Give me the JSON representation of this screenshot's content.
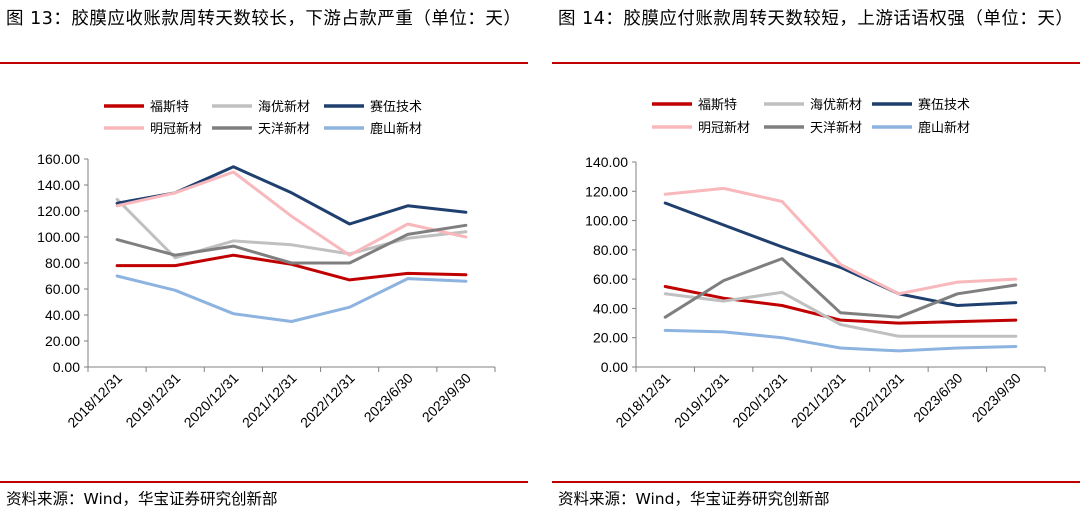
{
  "colors": {
    "rule": "#c00000",
    "series": [
      "#c00000",
      "#c0c0c0",
      "#1f3f6e",
      "#f8b8bc",
      "#7f7f7f",
      "#8db3e0"
    ]
  },
  "chart_data": [
    {
      "type": "line",
      "title": "图 13：胶膜应收账款周转天数较长，下游占款严重（单位：天）",
      "source": "资料来源：Wind，华宝证券研究创新部",
      "legend_position": "top",
      "grid": false,
      "x": [
        "2018/12/31",
        "2019/12/31",
        "2020/12/31",
        "2021/12/31",
        "2022/12/31",
        "2023/6/30",
        "2023/9/30"
      ],
      "ylim": [
        0,
        160
      ],
      "yticks": [
        "0.00",
        "20.00",
        "40.00",
        "60.00",
        "80.00",
        "100.00",
        "120.00",
        "140.00",
        "160.00"
      ],
      "series": [
        {
          "name": "福斯特",
          "values": [
            78,
            78,
            86,
            79,
            67,
            72,
            71
          ]
        },
        {
          "name": "海优新材",
          "values": [
            129,
            84,
            97,
            94,
            87,
            99,
            104
          ]
        },
        {
          "name": "赛伍技术",
          "values": [
            126,
            134,
            154,
            134,
            110,
            124,
            119
          ]
        },
        {
          "name": "明冠新材",
          "values": [
            124,
            134,
            150,
            116,
            86,
            110,
            100
          ]
        },
        {
          "name": "天洋新材",
          "values": [
            98,
            86,
            93,
            80,
            80,
            102,
            109
          ]
        },
        {
          "name": "鹿山新材",
          "values": [
            70,
            59,
            41,
            35,
            46,
            68,
            66
          ]
        }
      ]
    },
    {
      "type": "line",
      "title": "图 14：胶膜应付账款周转天数较短，上游话语权强（单位：天）",
      "source": "资料来源：Wind，华宝证券研究创新部",
      "legend_position": "top",
      "grid": false,
      "x": [
        "2018/12/31",
        "2019/12/31",
        "2020/12/31",
        "2021/12/31",
        "2022/12/31",
        "2023/6/30",
        "2023/9/30"
      ],
      "ylim": [
        0,
        140
      ],
      "yticks": [
        "0.00",
        "20.00",
        "40.00",
        "60.00",
        "80.00",
        "100.00",
        "120.00",
        "140.00"
      ],
      "series": [
        {
          "name": "福斯特",
          "values": [
            55,
            47,
            42,
            32,
            30,
            31,
            32
          ]
        },
        {
          "name": "海优新材",
          "values": [
            50,
            45,
            51,
            29,
            21,
            21,
            21
          ]
        },
        {
          "name": "赛伍技术",
          "values": [
            112,
            97,
            82,
            68,
            50,
            42,
            44
          ]
        },
        {
          "name": "明冠新材",
          "values": [
            118,
            122,
            113,
            70,
            50,
            58,
            60
          ]
        },
        {
          "name": "天洋新材",
          "values": [
            34,
            59,
            74,
            37,
            34,
            50,
            56
          ]
        },
        {
          "name": "鹿山新材",
          "values": [
            25,
            24,
            20,
            13,
            11,
            13,
            14
          ]
        }
      ]
    }
  ]
}
